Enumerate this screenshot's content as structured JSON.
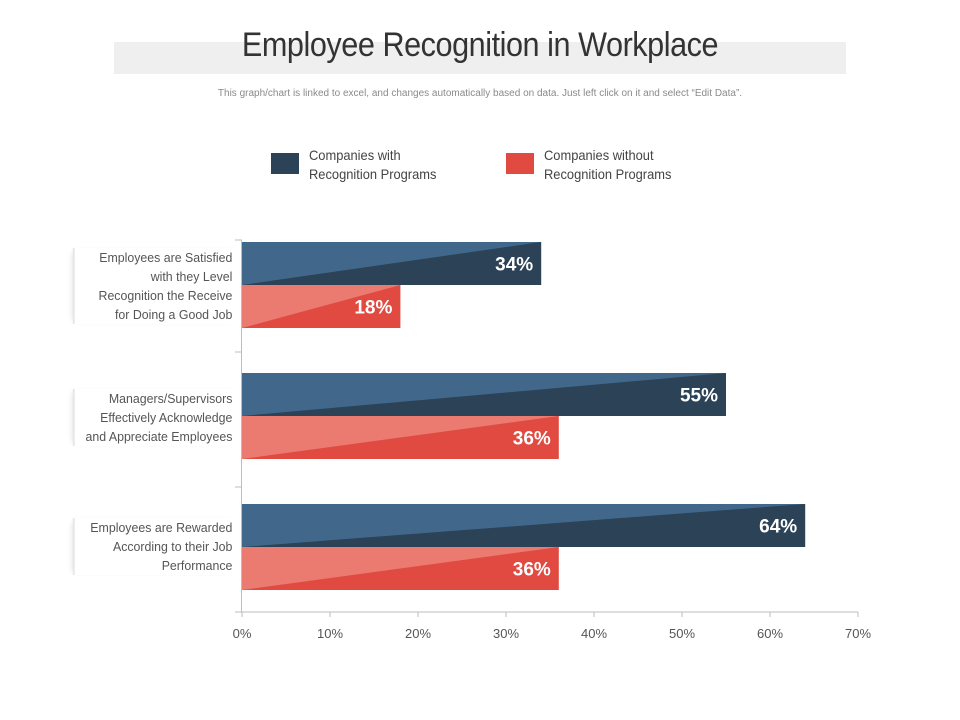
{
  "header": {
    "title": "Employee Recognition in Workplace",
    "subtitle": "This graph/chart is linked to excel, and changes automatically  based on data. Just left click on it and select “Edit Data”."
  },
  "colors": {
    "series_with": "#2b4257",
    "series_with_light": "#41688a",
    "series_without": "#e04a40",
    "series_without_light": "#eb7a70"
  },
  "chart_data": {
    "type": "bar",
    "orientation": "horizontal",
    "categories": [
      "Employees are Satisfied with they Level Recognition the Receive for Doing a Good Job",
      "Managers/Supervisors Effectively Acknowledge and Appreciate Employees",
      "Employees are Rewarded According to their Job Performance"
    ],
    "category_lines": [
      [
        "Employees are Satisfied",
        "with they Level",
        "Recognition the Receive",
        "for Doing a Good Job"
      ],
      [
        "Managers/Supervisors",
        "Effectively Acknowledge",
        "and Appreciate Employees"
      ],
      [
        "Employees are Rewarded",
        "According to their Job",
        "Performance"
      ]
    ],
    "series": [
      {
        "name": "Companies with Recognition Programs",
        "legend_lines": [
          "Companies with",
          "Recognition Programs"
        ],
        "values": [
          34,
          55,
          64
        ],
        "labels": [
          "34%",
          "55%",
          "64%"
        ]
      },
      {
        "name": "Companies without Recognition Programs",
        "legend_lines": [
          "Companies without",
          "Recognition Programs"
        ],
        "values": [
          18,
          36,
          36
        ],
        "labels": [
          "18%",
          "36%",
          "36%"
        ]
      }
    ],
    "xlim": [
      0,
      70
    ],
    "x_ticks": [
      0,
      10,
      20,
      30,
      40,
      50,
      60,
      70
    ],
    "x_tick_labels": [
      "0%",
      "10%",
      "20%",
      "30%",
      "40%",
      "50%",
      "60%",
      "70%"
    ],
    "legend_position": "top",
    "grid": false
  }
}
